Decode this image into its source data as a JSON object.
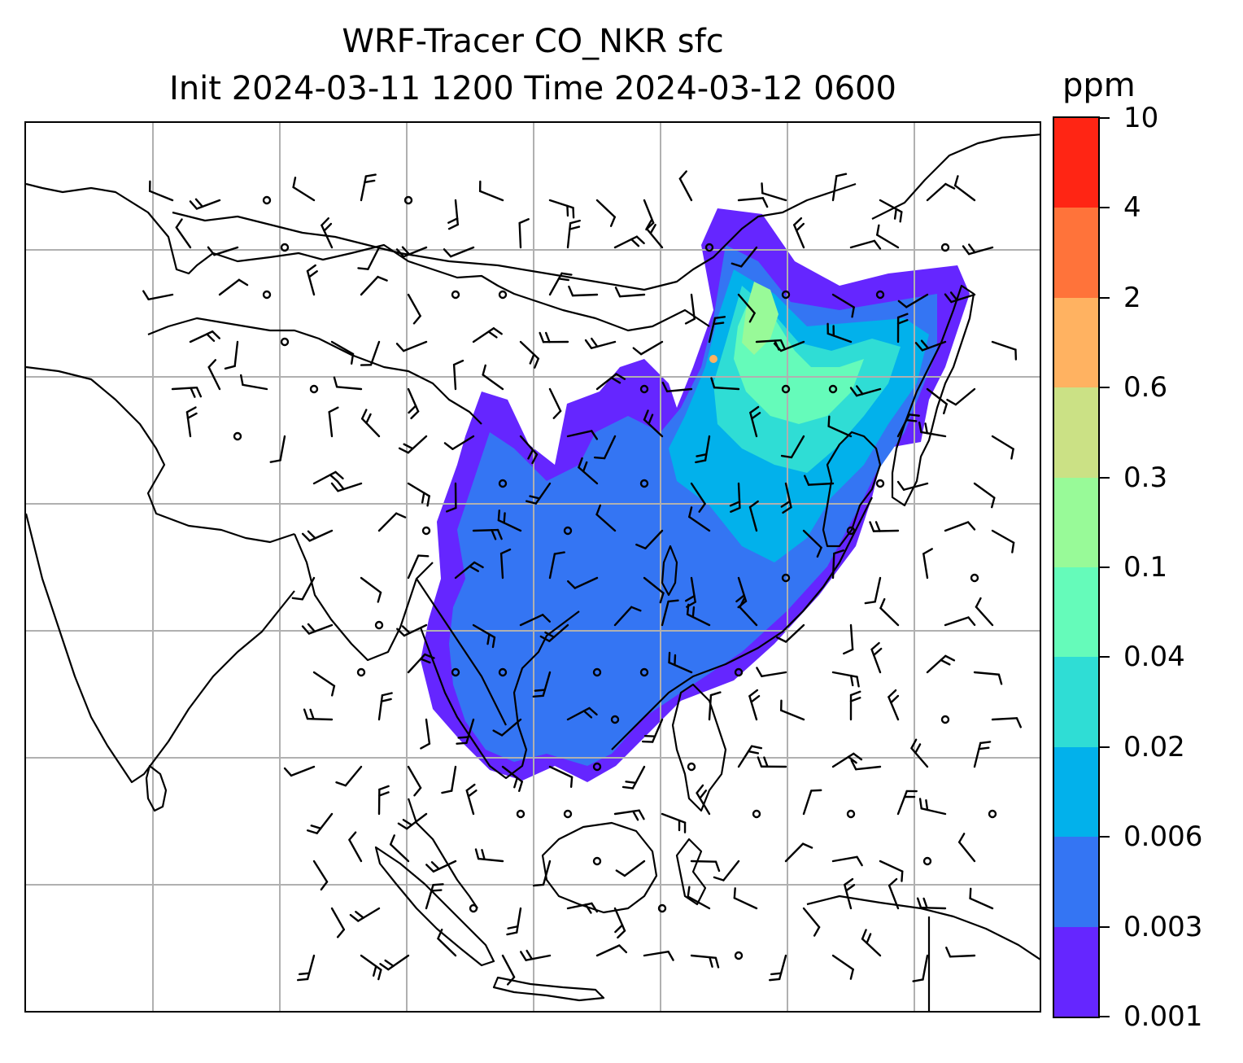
{
  "title": {
    "line1": "WRF-Tracer CO_NKR sfc",
    "line2": "Init 2024-03-11 1200 Time 2024-03-12 0600"
  },
  "colorbar": {
    "unit": "ppm",
    "ticks": [
      "0.001",
      "0.003",
      "0.006",
      "0.02",
      "0.04",
      "0.1",
      "0.3",
      "0.6",
      "2",
      "4",
      "10"
    ],
    "colors": [
      "#6526ff",
      "#3475f3",
      "#02b1eb",
      "#2fddd5",
      "#65fbba",
      "#98fa98",
      "#cbe185",
      "#ffb261",
      "#ff733a",
      "#ff2514"
    ]
  },
  "map": {
    "features": [
      "coastlines",
      "country-borders",
      "lat-lon-gridlines",
      "wind-barbs",
      "co-tracer-shading"
    ],
    "gridlines": true,
    "gridline_color": "#b0b0b0"
  }
}
